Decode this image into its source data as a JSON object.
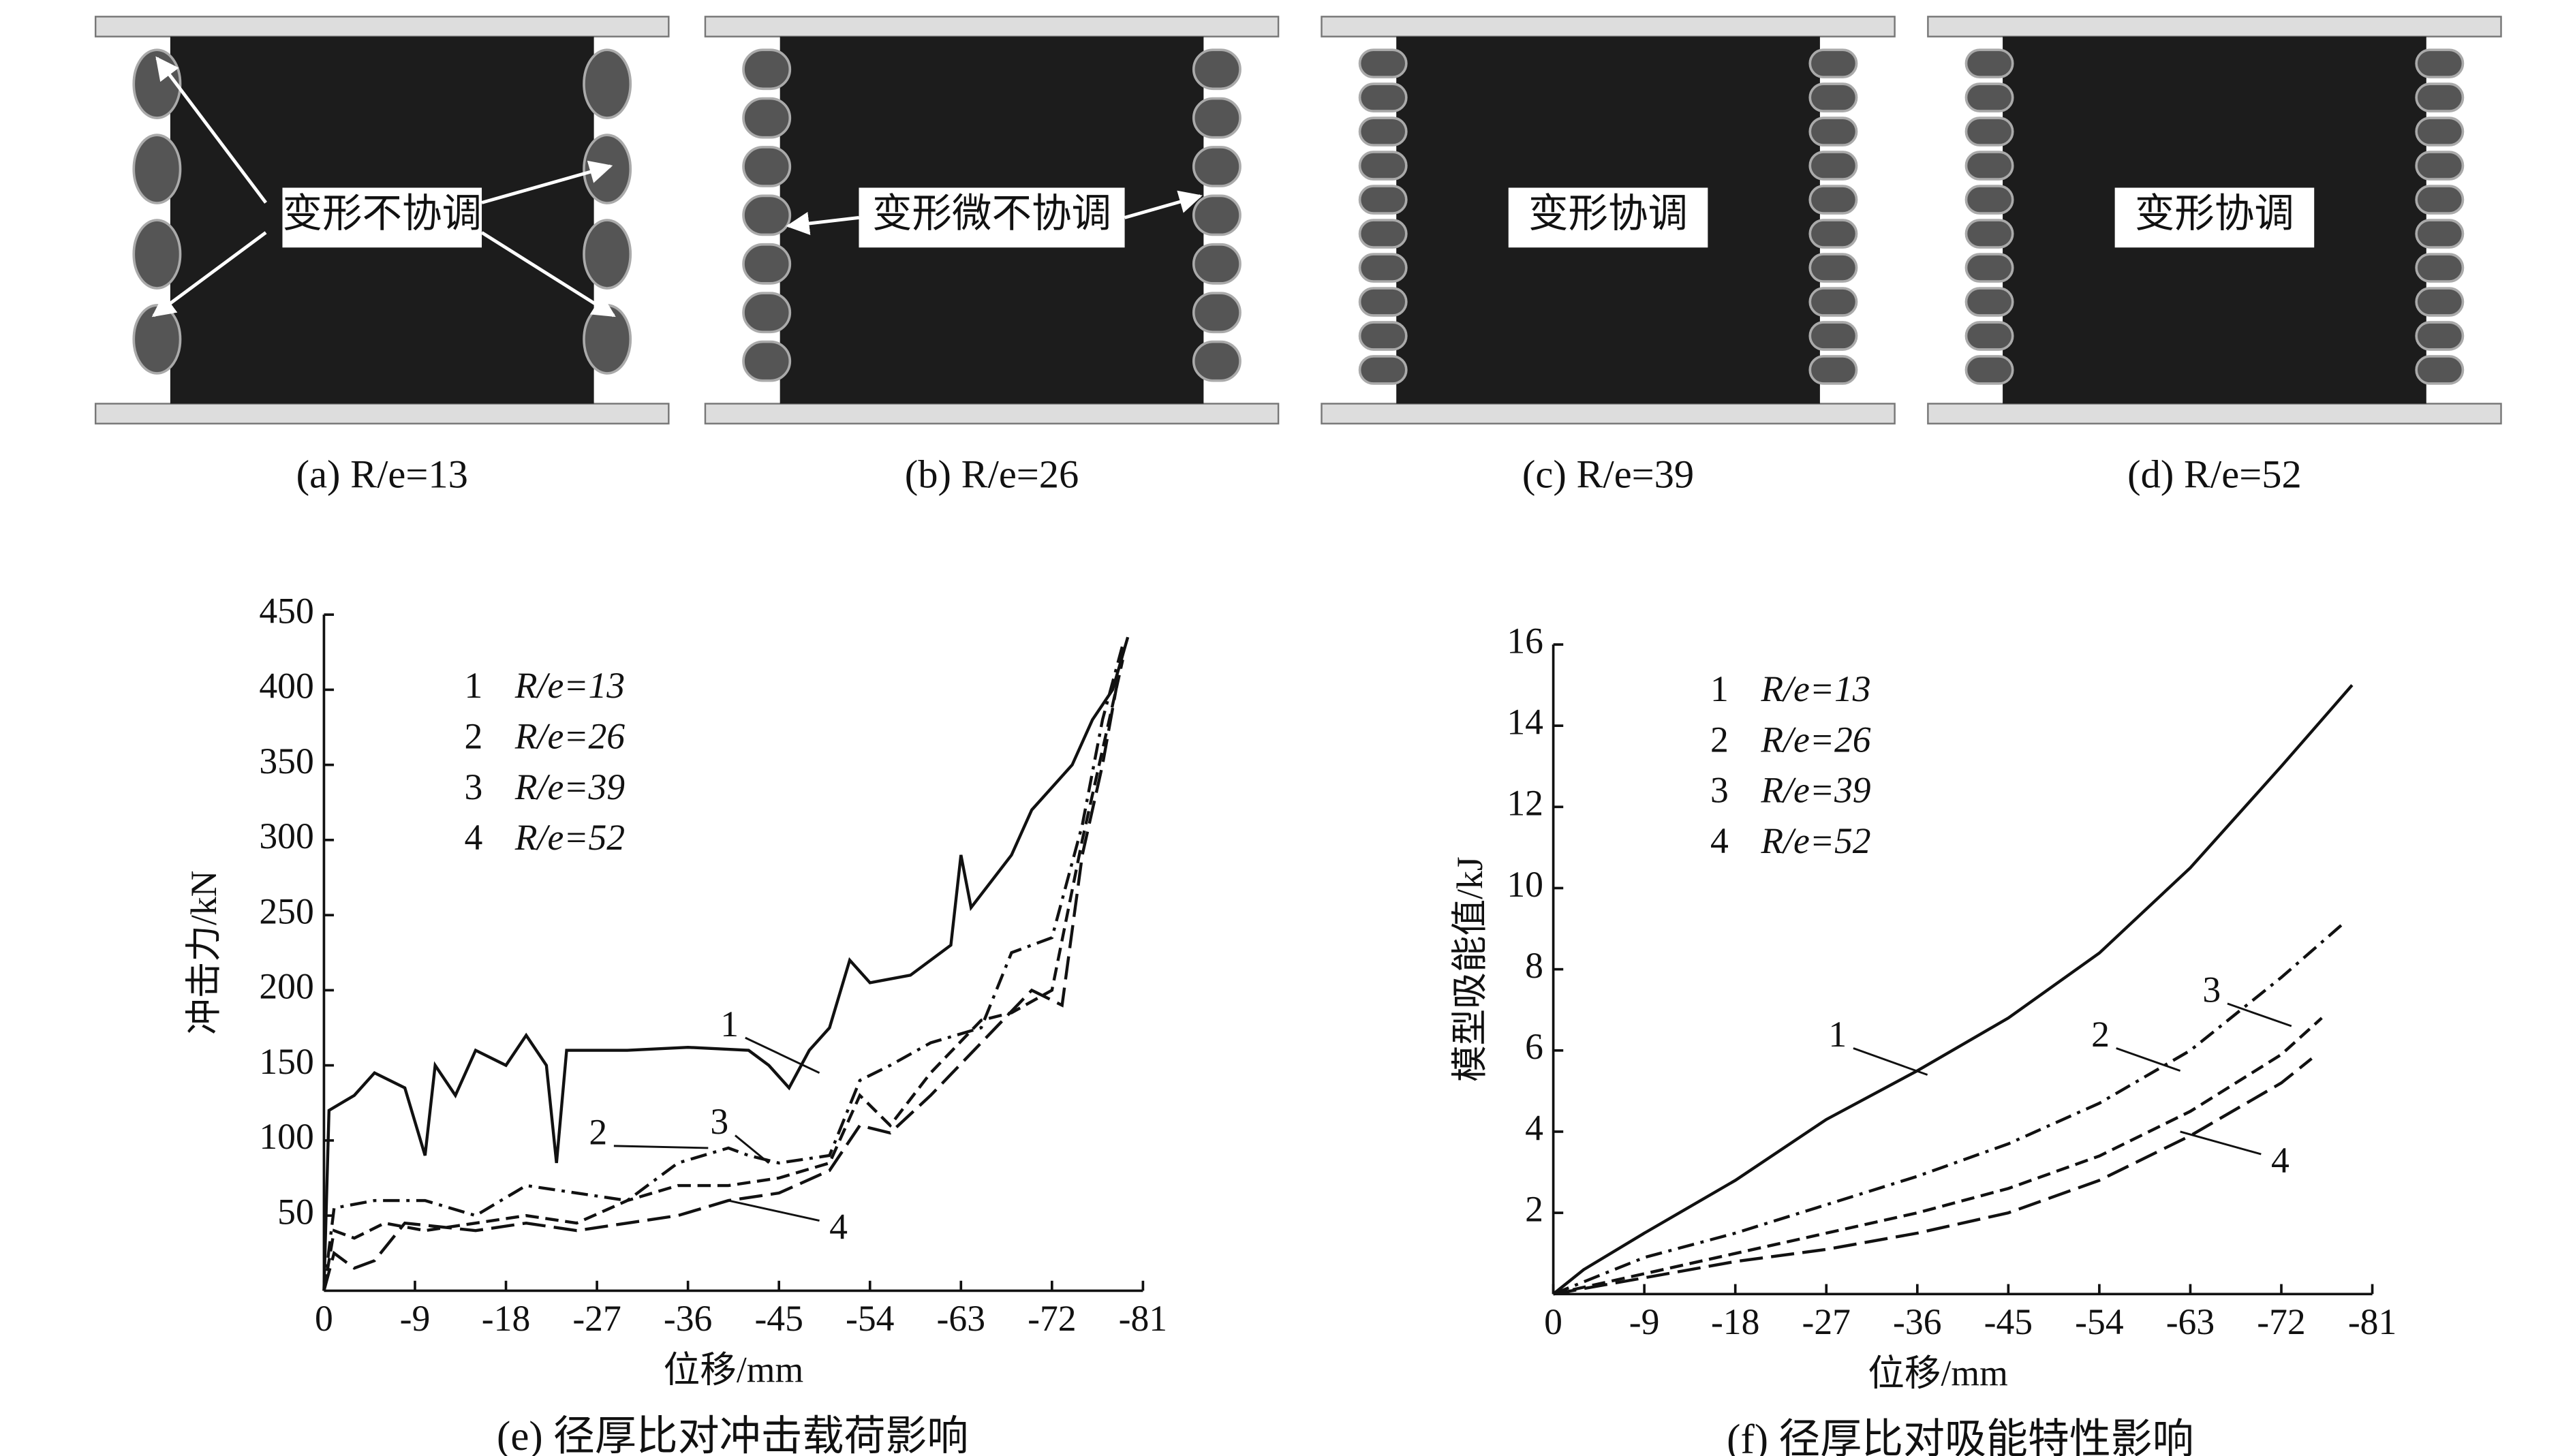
{
  "panels": [
    {
      "caption": "(a) R/e=13",
      "label": "变形不协调"
    },
    {
      "caption": "(b) R/e=26",
      "label": "变形微不协调"
    },
    {
      "caption": "(c) R/e=39",
      "label": "变形协调"
    },
    {
      "caption": "(d) R/e=52",
      "label": "变形协调"
    }
  ],
  "chart_data": [
    {
      "type": "line",
      "caption": "(e) 径厚比对冲击载荷影响",
      "x_label": "位移/mm",
      "y_label": "冲击力/kN",
      "xlim": [
        0,
        -81
      ],
      "xticks": [
        0,
        -9,
        -18,
        -27,
        -36,
        -45,
        -54,
        -63,
        -72,
        -81
      ],
      "ylim": [
        0,
        450
      ],
      "yticks": [
        50,
        100,
        150,
        200,
        250,
        300,
        350,
        400,
        450
      ],
      "series": [
        {
          "name": "R/e=13",
          "label": "1",
          "color": "#111111",
          "dash": "solid",
          "x": [
            0,
            -0.5,
            -3,
            -5,
            -8,
            -10,
            -11,
            -13,
            -15,
            -18,
            -20,
            -22,
            -23,
            -24,
            -30,
            -36,
            -42,
            -44,
            -46,
            -48,
            -50,
            -52,
            -54,
            -58,
            -62,
            -63,
            -64,
            -68,
            -70,
            -74,
            -76,
            -78,
            -79.5
          ],
          "values": [
            0,
            120,
            130,
            145,
            135,
            90,
            150,
            130,
            160,
            150,
            170,
            150,
            85,
            160,
            160,
            162,
            160,
            150,
            135,
            160,
            175,
            220,
            205,
            210,
            230,
            290,
            255,
            290,
            320,
            350,
            380,
            400,
            435
          ]
        },
        {
          "name": "R/e=26",
          "label": "2",
          "color": "#111111",
          "dash": "dashed",
          "x": [
            0,
            -1,
            -3,
            -6,
            -10,
            -15,
            -20,
            -25,
            -30,
            -35,
            -40,
            -45,
            -50,
            -53,
            -56,
            -60,
            -65,
            -68,
            -72,
            -75,
            -77,
            -79
          ],
          "values": [
            0,
            40,
            35,
            45,
            40,
            45,
            50,
            45,
            60,
            70,
            70,
            75,
            85,
            130,
            110,
            145,
            180,
            185,
            200,
            300,
            360,
            420
          ]
        },
        {
          "name": "R/e=39",
          "label": "3",
          "color": "#111111",
          "dash": "dashdot",
          "x": [
            0,
            -1,
            -5,
            -10,
            -15,
            -20,
            -25,
            -30,
            -35,
            -40,
            -42,
            -45,
            -50,
            -53,
            -56,
            -60,
            -65,
            -68,
            -72,
            -75,
            -77,
            -79
          ],
          "values": [
            0,
            55,
            60,
            60,
            50,
            70,
            65,
            60,
            85,
            95,
            90,
            85,
            90,
            140,
            150,
            165,
            175,
            225,
            235,
            310,
            380,
            430
          ]
        },
        {
          "name": "R/e=52",
          "label": "4",
          "color": "#111111",
          "dash": "longdash",
          "x": [
            0,
            -1,
            -3,
            -5,
            -8,
            -15,
            -20,
            -25,
            -30,
            -35,
            -40,
            -45,
            -50,
            -53,
            -56,
            -60,
            -65,
            -70,
            -73,
            -75,
            -77,
            -79
          ],
          "values": [
            0,
            25,
            15,
            20,
            45,
            40,
            45,
            40,
            45,
            50,
            60,
            65,
            80,
            110,
            105,
            130,
            165,
            200,
            190,
            290,
            350,
            425
          ]
        }
      ]
    },
    {
      "type": "line",
      "caption": "(f) 径厚比对吸能特性影响",
      "x_label": "位移/mm",
      "y_label": "模型吸能值/kJ",
      "xlim": [
        0,
        -81
      ],
      "xticks": [
        0,
        -9,
        -18,
        -27,
        -36,
        -45,
        -54,
        -63,
        -72,
        -81
      ],
      "ylim": [
        0,
        16
      ],
      "yticks": [
        2,
        4,
        6,
        8,
        10,
        12,
        14,
        16
      ],
      "series": [
        {
          "name": "R/e=13",
          "label": "1",
          "color": "#111111",
          "dash": "solid",
          "x": [
            0,
            -3,
            -9,
            -18,
            -27,
            -36,
            -45,
            -54,
            -63,
            -72,
            -79
          ],
          "values": [
            0,
            0.6,
            1.5,
            2.8,
            4.3,
            5.5,
            6.8,
            8.4,
            10.5,
            13,
            15
          ]
        },
        {
          "name": "R/e=26",
          "label": "2",
          "color": "#111111",
          "dash": "dashed",
          "x": [
            0,
            -9,
            -18,
            -27,
            -36,
            -45,
            -54,
            -63,
            -72,
            -76
          ],
          "values": [
            0,
            0.5,
            1.0,
            1.5,
            2.0,
            2.6,
            3.4,
            4.5,
            5.9,
            6.8
          ]
        },
        {
          "name": "R/e=39",
          "label": "3",
          "color": "#111111",
          "dash": "dashdot",
          "x": [
            0,
            -9,
            -18,
            -27,
            -36,
            -45,
            -54,
            -63,
            -72,
            -78
          ],
          "values": [
            0,
            0.9,
            1.5,
            2.2,
            2.9,
            3.7,
            4.7,
            6.0,
            7.8,
            9.1
          ]
        },
        {
          "name": "R/e=52",
          "label": "4",
          "color": "#111111",
          "dash": "longdash",
          "x": [
            0,
            -9,
            -18,
            -27,
            -36,
            -45,
            -54,
            -63,
            -72,
            -75
          ],
          "values": [
            0,
            0.4,
            0.8,
            1.1,
            1.5,
            2.0,
            2.8,
            3.9,
            5.2,
            5.8
          ]
        }
      ]
    }
  ]
}
